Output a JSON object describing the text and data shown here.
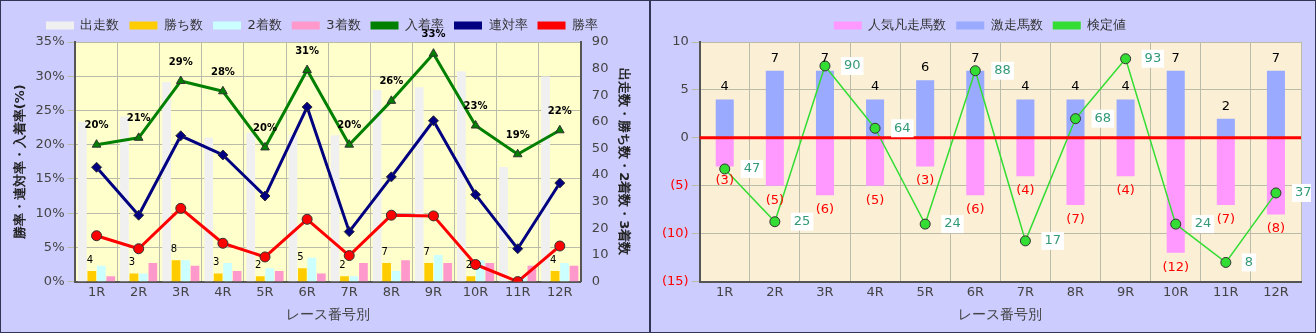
{
  "chart_data": [
    {
      "type": "bar",
      "categories": [
        "1R",
        "2R",
        "3R",
        "4R",
        "5R",
        "6R",
        "7R",
        "8R",
        "9R",
        "10R",
        "11R",
        "12R"
      ],
      "xlabel": "レース番号別",
      "ylabel": "勝率・連対率・入着率(%)",
      "y2label": "出走数・勝ち数・2着数・3着数",
      "ylim": [
        0,
        35
      ],
      "yticks": [
        {
          "value": 0,
          "label": "0%"
        },
        {
          "value": 5,
          "label": "5%"
        },
        {
          "value": 10,
          "label": "10%"
        },
        {
          "value": 15,
          "label": "15%"
        },
        {
          "value": 20,
          "label": "20%"
        },
        {
          "value": 25,
          "label": "25%"
        },
        {
          "value": 30,
          "label": "30%"
        },
        {
          "value": 35,
          "label": "35%"
        }
      ],
      "y2lim": [
        0,
        90
      ],
      "y2ticks": [
        0,
        10,
        20,
        30,
        40,
        50,
        60,
        70,
        80,
        90
      ],
      "grid": true,
      "legend": "top",
      "series": [
        {
          "name": "出走数",
          "type": "bar",
          "axis": "y2",
          "color": "#f0f0f0",
          "values": [
            60,
            62,
            75,
            54,
            56,
            55,
            55,
            72,
            73,
            79,
            43,
            77
          ]
        },
        {
          "name": "勝ち数",
          "type": "bar",
          "axis": "y2",
          "color": "#ffcc00",
          "values": [
            4,
            3,
            8,
            3,
            2,
            5,
            2,
            7,
            7,
            2,
            0,
            4
          ],
          "value_labels": [
            "4",
            "3",
            "8",
            "3",
            "2",
            "5",
            "2",
            "7",
            "7",
            "2",
            null,
            "4"
          ]
        },
        {
          "name": "2着数",
          "type": "bar",
          "axis": "y2",
          "color": "#ccffff",
          "values": [
            6,
            3,
            8,
            7,
            5,
            9,
            2,
            4,
            10,
            8,
            2,
            7
          ]
        },
        {
          "name": "3着数",
          "type": "bar",
          "axis": "y2",
          "color": "#ff99cc",
          "values": [
            2,
            7,
            6,
            4,
            4,
            3,
            7,
            8,
            7,
            7,
            6,
            6
          ]
        },
        {
          "name": "入着率",
          "type": "line",
          "color": "#008000",
          "marker": "triangle",
          "values": [
            20.0,
            21.0,
            29.3,
            27.8,
            19.6,
            30.9,
            20.0,
            26.4,
            33.3,
            22.8,
            18.6,
            22.1
          ],
          "value_labels": [
            "20%",
            "21%",
            "29%",
            "28%",
            "20%",
            "31%",
            "20%",
            "26%",
            "33%",
            "23%",
            "19%",
            "22%"
          ]
        },
        {
          "name": "連対率",
          "type": "line",
          "color": "#000080",
          "marker": "diamond",
          "values": [
            16.7,
            9.7,
            21.3,
            18.5,
            12.5,
            25.5,
            7.3,
            15.3,
            23.5,
            12.7,
            4.8,
            14.4
          ]
        },
        {
          "name": "勝率",
          "type": "line",
          "color": "#ff0000",
          "marker": "circle",
          "values": [
            6.7,
            4.8,
            10.7,
            5.6,
            3.6,
            9.1,
            3.8,
            9.7,
            9.6,
            2.5,
            0,
            5.2
          ]
        }
      ]
    },
    {
      "type": "bar",
      "stacked": true,
      "categories": [
        "1R",
        "2R",
        "3R",
        "4R",
        "5R",
        "6R",
        "7R",
        "8R",
        "9R",
        "10R",
        "11R",
        "12R"
      ],
      "xlabel": "レース番号別",
      "ylim": [
        -15,
        10
      ],
      "yticks": [
        {
          "value": 10,
          "label": "10"
        },
        {
          "value": 5,
          "label": "5"
        },
        {
          "value": 0,
          "label": "0"
        },
        {
          "value": -5,
          "label": "(5)"
        },
        {
          "value": -10,
          "label": "(10)"
        },
        {
          "value": -15,
          "label": "(15)"
        }
      ],
      "y2lim": [
        0,
        100
      ],
      "grid": true,
      "legend": "top",
      "ref_lines": [
        {
          "axis": "y",
          "value": 0,
          "color": "#ff0000"
        }
      ],
      "series": [
        {
          "name": "人気凡走馬数",
          "type": "bar",
          "color": "#ff99ff",
          "values": [
            -3,
            -5,
            -6,
            -5,
            -3,
            -6,
            -4,
            -7,
            -4,
            -12,
            -7,
            -8
          ],
          "value_labels": [
            "(3)",
            "(5)",
            "(6)",
            "(5)",
            "(3)",
            "(6)",
            "(4)",
            "(7)",
            "(4)",
            "(12)",
            "(7)",
            "(8)"
          ]
        },
        {
          "name": "激走馬数",
          "type": "bar",
          "color": "#99aaff",
          "values": [
            4,
            7,
            7,
            4,
            6,
            7,
            4,
            4,
            4,
            7,
            2,
            7
          ],
          "value_labels": [
            "4",
            "7",
            "7",
            "4",
            "6",
            "7",
            "4",
            "4",
            "4",
            "7",
            "2",
            "7"
          ]
        },
        {
          "name": "検定値",
          "type": "line",
          "axis": "y2",
          "color": "#33dd33",
          "marker": "circle",
          "values": [
            47,
            25,
            90,
            64,
            24,
            88,
            17,
            68,
            93,
            24,
            8,
            37
          ],
          "value_labels": [
            "47",
            "25",
            "90",
            "64",
            "24",
            "88",
            "17",
            "68",
            "93",
            "24",
            "8",
            "37"
          ]
        }
      ]
    }
  ]
}
